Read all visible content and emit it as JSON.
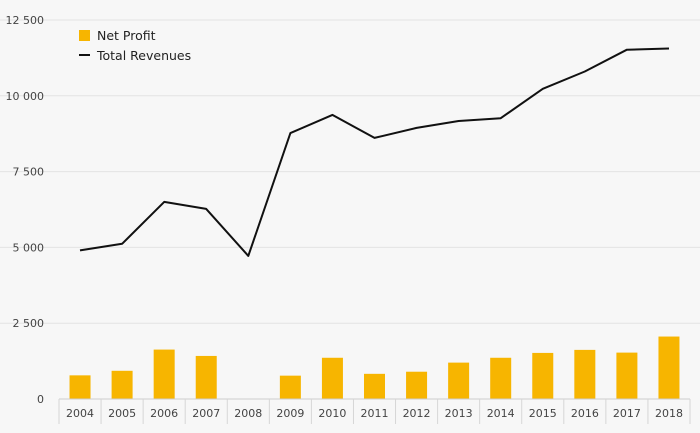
{
  "chart_data": {
    "type": "bar+line",
    "categories": [
      "2004",
      "2005",
      "2006",
      "2007",
      "2008",
      "2009",
      "2010",
      "2011",
      "2012",
      "2013",
      "2014",
      "2015",
      "2016",
      "2017",
      "2018"
    ],
    "series": [
      {
        "name": "Net Profit",
        "kind": "bar",
        "color": "#f7b500",
        "values": [
          780,
          930,
          1630,
          1420,
          0,
          770,
          1360,
          830,
          900,
          1200,
          1360,
          1520,
          1620,
          1530,
          2060
        ]
      },
      {
        "name": "Total Revenues",
        "kind": "line",
        "color": "#111111",
        "values": [
          4900,
          5120,
          6500,
          6270,
          4720,
          8770,
          9370,
          8610,
          8940,
          9170,
          9260,
          10230,
          10800,
          11520,
          11560
        ]
      }
    ],
    "ylim": [
      0,
      12500
    ],
    "yticks": [
      0,
      2500,
      5000,
      7500,
      10000,
      12500
    ],
    "ytick_labels": [
      "0",
      "2 500",
      "5 000",
      "7 500",
      "10 000",
      "12 500"
    ],
    "grid": true,
    "legend_position": "top-left"
  }
}
